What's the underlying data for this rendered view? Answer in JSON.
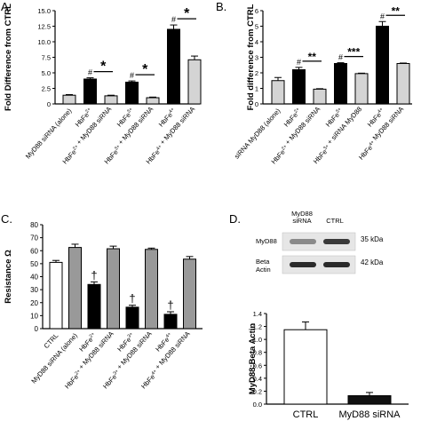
{
  "chart_data": [
    {
      "panel": "A.",
      "type": "bar",
      "ylabel": "Fold Difference from CTRL",
      "ylim": [
        0,
        15
      ],
      "yticks": [
        "0",
        "2.5",
        "5.0",
        "7.5",
        "10.0",
        "12.5",
        "15.0"
      ],
      "categories": [
        "MyD88 siRNA (alone)",
        "HbFe2+",
        "HbFe2+ + MyD88 siRNA",
        "HbFe3+",
        "HbFe3+ + MyD88 siRNA",
        "HbFe4+",
        "HbFe4+ + MyD88 siRNA"
      ],
      "values": [
        1.4,
        4.0,
        1.3,
        3.5,
        1.0,
        12.0,
        7.1
      ],
      "errors": [
        0.1,
        0.2,
        0.1,
        0.2,
        0.1,
        0.7,
        0.6
      ],
      "fills": [
        "#d4d4d4",
        "#000000",
        "#d4d4d4",
        "#000000",
        "#d4d4d4",
        "#000000",
        "#d4d4d4"
      ],
      "annotations": [
        {
          "text": "#",
          "at": 1
        },
        {
          "text": "*",
          "from": 1,
          "to": 2
        },
        {
          "text": "#",
          "at": 3
        },
        {
          "text": "*",
          "from": 3,
          "to": 4
        },
        {
          "text": "#",
          "at": 5
        },
        {
          "text": "*",
          "from": 5,
          "to": 6
        }
      ]
    },
    {
      "panel": "B.",
      "type": "bar",
      "ylabel": "Fold difference from CTRL",
      "ylim": [
        0,
        6
      ],
      "yticks": [
        "0",
        "1",
        "2",
        "3",
        "4",
        "5",
        "6"
      ],
      "categories": [
        "siRNA MyD88 (alone)",
        "HbFe2+",
        "HbFe2+ + MyD88 siRNA",
        "HbFe3+",
        "HbFe3+ + siRNA MyD88",
        "HbFe4+",
        "HbFe4+ MyD88 siRNA"
      ],
      "values": [
        1.5,
        2.2,
        0.95,
        2.6,
        1.95,
        5.0,
        2.6
      ],
      "errors": [
        0.2,
        0.15,
        0.03,
        0.05,
        0.03,
        0.3,
        0.03
      ],
      "fills": [
        "#d4d4d4",
        "#000000",
        "#d4d4d4",
        "#000000",
        "#d4d4d4",
        "#000000",
        "#d4d4d4"
      ],
      "annotations": [
        {
          "text": "#",
          "at": 1
        },
        {
          "text": "**",
          "from": 1,
          "to": 2
        },
        {
          "text": "#",
          "at": 3
        },
        {
          "text": "***",
          "from": 3,
          "to": 4
        },
        {
          "text": "#",
          "at": 5
        },
        {
          "text": "**",
          "from": 5,
          "to": 6
        }
      ]
    },
    {
      "panel": "C.",
      "type": "bar",
      "ylabel": "Resistance Ω",
      "ylim": [
        0,
        80
      ],
      "yticks": [
        "0",
        "10",
        "20",
        "30",
        "40",
        "50",
        "60",
        "70",
        "80"
      ],
      "categories": [
        "CTRL",
        "MyD88 siRNA (alone)",
        "HbFe2+",
        "HbFe2+ + MyD88 siRNA",
        "HbFe3+",
        "HbFe3+ + MyD88 siRNA",
        "HbFe4+",
        "HbFe4+ + MyD88 siRNA"
      ],
      "values": [
        51,
        62.5,
        34,
        61.5,
        16.5,
        61,
        11,
        53.5
      ],
      "errors": [
        1.5,
        2.5,
        2.0,
        2.0,
        1.5,
        1.0,
        2.0,
        2.0
      ],
      "fills": [
        "#ffffff",
        "#999999",
        "#000000",
        "#999999",
        "#000000",
        "#999999",
        "#000000",
        "#999999"
      ],
      "annotations": [
        {
          "text": "†",
          "at": 2
        },
        {
          "text": "†",
          "at": 4
        },
        {
          "text": "†",
          "at": 6
        }
      ]
    },
    {
      "panel": "D.",
      "type": "bar",
      "ylabel": "MyD88:Beta Actin",
      "ylim": [
        0,
        1.4
      ],
      "yticks": [
        "0.0",
        "0.2",
        "0.4",
        "0.6",
        "0.8",
        "1.0",
        "1.2",
        "1.4"
      ],
      "categories": [
        "CTRL",
        "MyD88 siRNA"
      ],
      "values": [
        1.15,
        0.13
      ],
      "errors": [
        0.12,
        0.05
      ],
      "fills": [
        "#ffffff",
        "#111111"
      ],
      "blot": {
        "lanes": [
          "MyD88 siRNA",
          "CTRL"
        ],
        "rows": [
          {
            "label": "MyD88",
            "kda": "35 kDa"
          },
          {
            "label": "Beta Actin",
            "kda": "42 kDa"
          }
        ]
      }
    }
  ]
}
